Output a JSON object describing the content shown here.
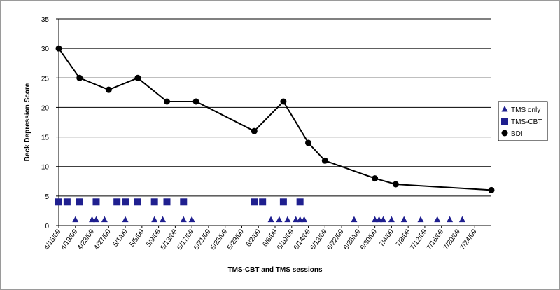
{
  "chart_data": {
    "type": "line",
    "title": "",
    "xlabel": "TMS-CBT and TMS sessions",
    "ylabel": "Beck Depression Score",
    "x_axis_type": "date",
    "xlim": [
      "2009-04-15",
      "2009-07-28"
    ],
    "ylim": [
      0,
      35
    ],
    "yticks": [
      0,
      5,
      10,
      15,
      20,
      25,
      30,
      35
    ],
    "x_tick_labels": [
      "4/15/09",
      "4/19/09",
      "4/23/09",
      "4/27/09",
      "5/1/09",
      "5/5/09",
      "5/9/09",
      "5/13/09",
      "5/17/09",
      "5/21/09",
      "5/25/09",
      "5/29/09",
      "6/2/09",
      "6/6/09",
      "6/10/09",
      "6/14/09",
      "6/18/09",
      "6/22/09",
      "6/26/09",
      "6/30/09",
      "7/4/09",
      "7/8/09",
      "7/12/09",
      "7/16/09",
      "7/20/09",
      "7/24/09"
    ],
    "grid": "horizontal",
    "legend_position": "right",
    "series": [
      {
        "name": "TMS only",
        "marker": "triangle",
        "color": "#1f1f8f",
        "points": [
          {
            "x": "2009-04-19",
            "y": 1
          },
          {
            "x": "2009-04-23",
            "y": 1
          },
          {
            "x": "2009-04-24",
            "y": 1
          },
          {
            "x": "2009-04-26",
            "y": 1
          },
          {
            "x": "2009-05-01",
            "y": 1
          },
          {
            "x": "2009-05-08",
            "y": 1
          },
          {
            "x": "2009-05-10",
            "y": 1
          },
          {
            "x": "2009-05-15",
            "y": 1
          },
          {
            "x": "2009-05-17",
            "y": 1
          },
          {
            "x": "2009-06-05",
            "y": 1
          },
          {
            "x": "2009-06-07",
            "y": 1
          },
          {
            "x": "2009-06-09",
            "y": 1
          },
          {
            "x": "2009-06-11",
            "y": 1
          },
          {
            "x": "2009-06-12",
            "y": 1
          },
          {
            "x": "2009-06-13",
            "y": 1
          },
          {
            "x": "2009-06-25",
            "y": 1
          },
          {
            "x": "2009-06-30",
            "y": 1
          },
          {
            "x": "2009-07-01",
            "y": 1
          },
          {
            "x": "2009-07-02",
            "y": 1
          },
          {
            "x": "2009-07-04",
            "y": 1
          },
          {
            "x": "2009-07-07",
            "y": 1
          },
          {
            "x": "2009-07-11",
            "y": 1
          },
          {
            "x": "2009-07-15",
            "y": 1
          },
          {
            "x": "2009-07-18",
            "y": 1
          },
          {
            "x": "2009-07-21",
            "y": 1
          }
        ]
      },
      {
        "name": "TMS-CBT",
        "marker": "square",
        "color": "#1f1f8f",
        "points": [
          {
            "x": "2009-04-15",
            "y": 4
          },
          {
            "x": "2009-04-17",
            "y": 4
          },
          {
            "x": "2009-04-20",
            "y": 4
          },
          {
            "x": "2009-04-24",
            "y": 4
          },
          {
            "x": "2009-04-29",
            "y": 4
          },
          {
            "x": "2009-05-01",
            "y": 4
          },
          {
            "x": "2009-05-04",
            "y": 4
          },
          {
            "x": "2009-05-08",
            "y": 4
          },
          {
            "x": "2009-05-11",
            "y": 4
          },
          {
            "x": "2009-05-15",
            "y": 4
          },
          {
            "x": "2009-06-01",
            "y": 4
          },
          {
            "x": "2009-06-03",
            "y": 4
          },
          {
            "x": "2009-06-08",
            "y": 4
          },
          {
            "x": "2009-06-12",
            "y": 4
          }
        ]
      },
      {
        "name": "BDI",
        "marker": "circle",
        "color": "#000000",
        "line": true,
        "points": [
          {
            "x": "2009-04-15",
            "y": 30
          },
          {
            "x": "2009-04-20",
            "y": 25
          },
          {
            "x": "2009-04-27",
            "y": 23
          },
          {
            "x": "2009-05-04",
            "y": 25
          },
          {
            "x": "2009-05-11",
            "y": 21
          },
          {
            "x": "2009-05-18",
            "y": 21
          },
          {
            "x": "2009-06-01",
            "y": 16
          },
          {
            "x": "2009-06-08",
            "y": 21
          },
          {
            "x": "2009-06-14",
            "y": 14
          },
          {
            "x": "2009-06-18",
            "y": 11
          },
          {
            "x": "2009-06-30",
            "y": 8
          },
          {
            "x": "2009-07-05",
            "y": 7
          },
          {
            "x": "2009-07-28",
            "y": 6
          }
        ]
      }
    ]
  }
}
